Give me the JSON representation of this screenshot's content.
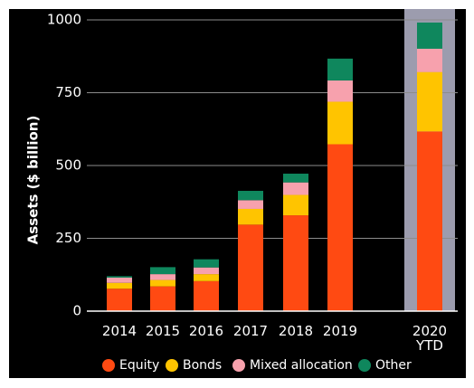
{
  "chart_data": {
    "type": "bar",
    "stacked": true,
    "ylabel": "Assets ($ billion)",
    "ylim": [
      0,
      1000
    ],
    "yticks": [
      0,
      250,
      500,
      750,
      1000
    ],
    "categories": [
      "2014",
      "2015",
      "2016",
      "2017",
      "2018",
      "2019",
      "2020\nYTD"
    ],
    "highlighted_category": "2020\nYTD",
    "gridlines": true,
    "legend_position": "bottom",
    "series": [
      {
        "name": "Equity",
        "color": "#ff4a12",
        "values": [
          77,
          85,
          103,
          297,
          329,
          573,
          617
        ]
      },
      {
        "name": "Bonds",
        "color": "#ffc400",
        "values": [
          20,
          22,
          24,
          54,
          70,
          146,
          204
        ]
      },
      {
        "name": "Mixed allocation",
        "color": "#f7a1ad",
        "values": [
          18,
          20,
          23,
          30,
          43,
          73,
          80
        ]
      },
      {
        "name": "Other",
        "color": "#0f875d",
        "values": [
          5,
          24,
          28,
          32,
          30,
          75,
          90
        ]
      }
    ]
  }
}
